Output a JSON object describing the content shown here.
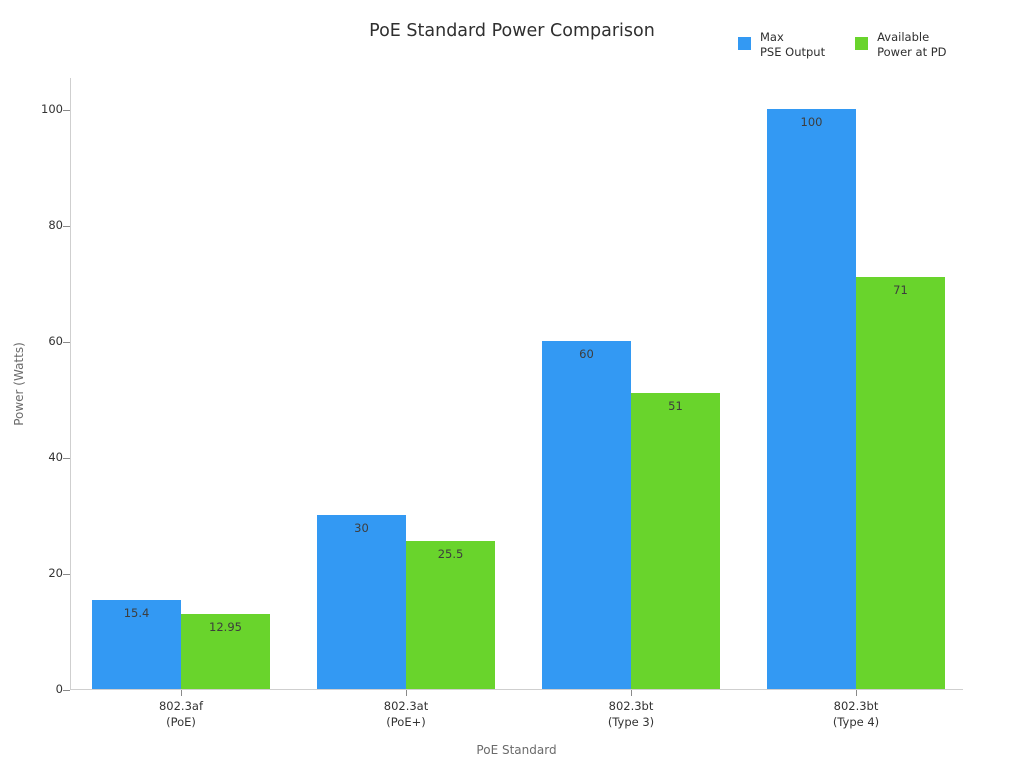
{
  "chart_data": {
    "type": "bar",
    "title": "PoE Standard Power Comparison",
    "xlabel": "PoE Standard",
    "ylabel": "Power (Watts)",
    "categories": [
      {
        "line1": "802.3af",
        "line2": "(PoE)"
      },
      {
        "line1": "802.3at",
        "line2": "(PoE+)"
      },
      {
        "line1": "802.3bt",
        "line2": "(Type 3)"
      },
      {
        "line1": "802.3bt",
        "line2": "(Type 4)"
      }
    ],
    "series": [
      {
        "key": "max-pse-output",
        "name": "Max PSE Output",
        "legend_lines": [
          "Max",
          "PSE Output"
        ],
        "color": "#3399f3",
        "values": [
          15.4,
          30,
          60,
          100
        ],
        "labels": [
          "15.4",
          "30",
          "60",
          "100"
        ]
      },
      {
        "key": "available-power-at-pd",
        "name": "Available Power at PD",
        "legend_lines": [
          "Available",
          "Power at PD"
        ],
        "color": "#69d42c",
        "values": [
          12.95,
          25.5,
          51,
          71
        ],
        "labels": [
          "12.95",
          "25.5",
          "51",
          "71"
        ]
      }
    ],
    "yticks": [
      "0",
      "20",
      "40",
      "60",
      "80",
      "100"
    ],
    "ylim": [
      0,
      105.5
    ],
    "legend_position": "top-right",
    "grid": "off",
    "colors": {
      "spine": "#cfcfcf",
      "tick_mark": "#8a8a8a",
      "tick_label": "#333333",
      "axis_title": "#6b6b6b",
      "title_text": "#2f2f2f",
      "bar_value_label": "#3d3d3d",
      "background": "#ffffff"
    }
  }
}
